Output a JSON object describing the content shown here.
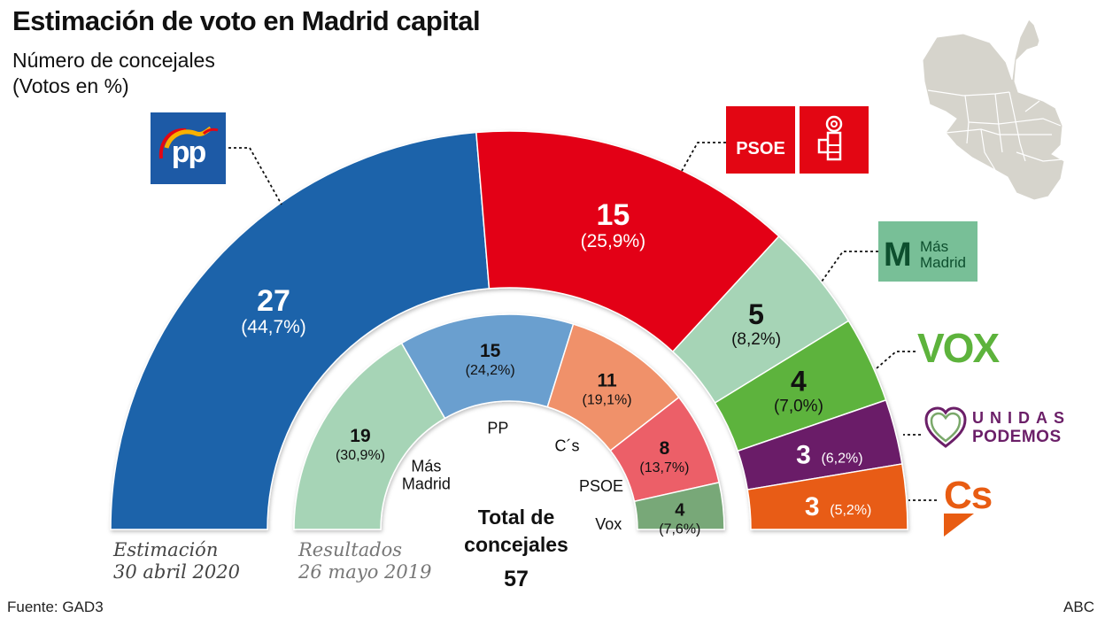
{
  "header": {
    "title": "Estimación de voto en Madrid capital",
    "subtitle_line1": "Número de concejales",
    "subtitle_line2": "(Votos en %)"
  },
  "footer": {
    "source": "Fuente: GAD3",
    "publisher": "ABC"
  },
  "logos": {
    "pp": "PP",
    "psoe": "PSOE",
    "mas_madrid_line1": "Más",
    "mas_madrid_line2": "Madrid",
    "mas_madrid_mark": "M",
    "vox": "VOX",
    "podemos_line1": "UNIDAS",
    "podemos_line2": "PODEMOS",
    "cs": "Cs"
  },
  "chart_data": [
    {
      "type": "pie",
      "subtype": "parliament-semicircle",
      "name": "estimacion",
      "caption_line1": "Estimación",
      "caption_line2": "30 abril 2020",
      "total_seats": 57,
      "categories": [
        "PP",
        "PSOE",
        "Más Madrid",
        "Vox",
        "Unidas Podemos",
        "Cs"
      ],
      "seats": [
        27,
        15,
        5,
        4,
        3,
        3
      ],
      "votes_pct": [
        "44,7%",
        "25,9%",
        "8,2%",
        "7,0%",
        "6,2%",
        "5,2%"
      ],
      "colors": [
        "#1e64aa",
        "#e30613",
        "#a6d4b6",
        "#5db33c",
        "#6b1f68",
        "#e85c12"
      ],
      "label_colors": [
        "#ffffff",
        "#ffffff",
        "#111111",
        "#111111",
        "#ffffff",
        "#ffffff"
      ]
    },
    {
      "type": "pie",
      "subtype": "parliament-semicircle",
      "name": "resultados",
      "caption_line1": "Resultados",
      "caption_line2": "26 mayo 2019",
      "total_seats": 57,
      "categories": [
        "Más Madrid",
        "PP",
        "C´s",
        "PSOE",
        "Vox"
      ],
      "category_labels": [
        "Más\nMadrid",
        "PP",
        "C´s",
        "PSOE",
        "Vox"
      ],
      "seats": [
        19,
        15,
        11,
        8,
        4
      ],
      "votes_pct": [
        "30,9%",
        "24,2%",
        "19,1%",
        "13,7%",
        "7,6%"
      ],
      "colors": [
        "#a6d4b6",
        "#6b9fcf",
        "#f0916a",
        "#ec5f68",
        "#78a878"
      ],
      "label_colors": [
        "#111111",
        "#111111",
        "#111111",
        "#111111",
        "#111111"
      ]
    }
  ],
  "center_total": {
    "line1": "Total de",
    "line2": "concejales",
    "value": "57"
  }
}
